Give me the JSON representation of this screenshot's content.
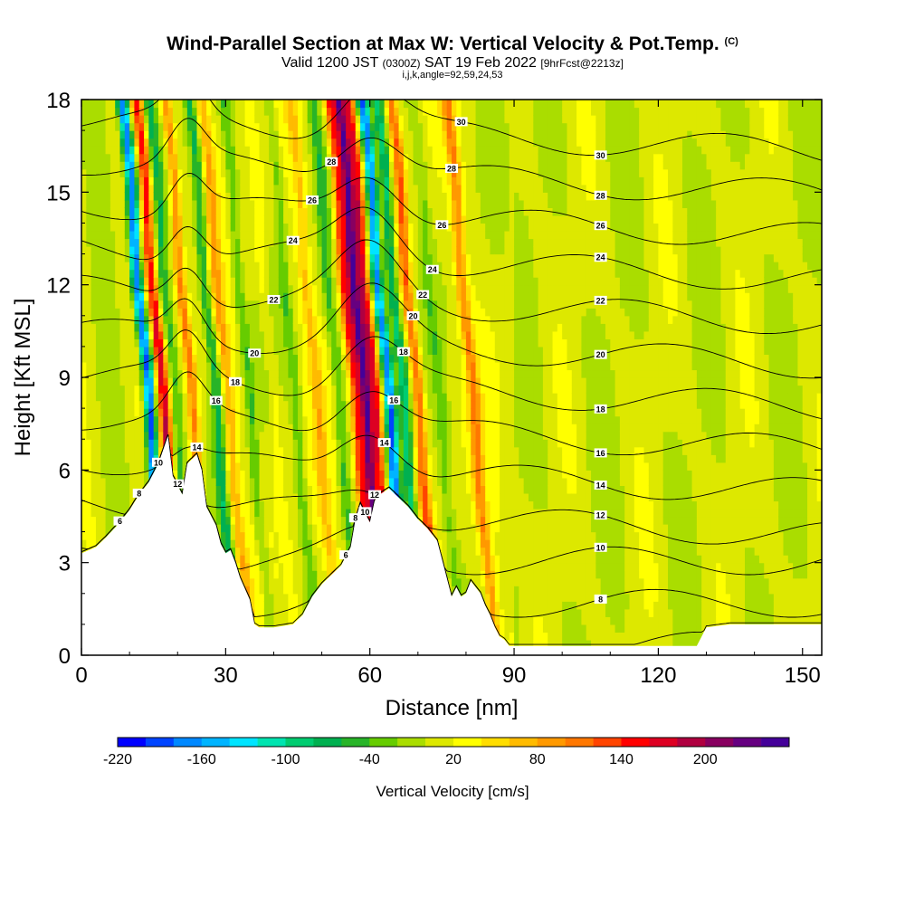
{
  "header": {
    "title": "Wind-Parallel Section at Max W: Vertical Velocity & Pot.Temp.",
    "title_mark": "(C)",
    "subtitle_a": "Valid 1200 JST",
    "subtitle_b": "(0300Z)",
    "subtitle_c": "SAT 19 Feb 2022",
    "subtitle_d": "[9hrFcst@2213z]",
    "subtitle_line3": "i,j,k,angle=92,59,24,53"
  },
  "chart_data": {
    "type": "heatmap",
    "title": "Wind-Parallel Section at Max W: Vertical Velocity & Pot.Temp.",
    "xlabel": "Distance [nm]",
    "ylabel": "Height [Kft MSL]",
    "xlim": [
      0,
      154
    ],
    "ylim": [
      0,
      18
    ],
    "x_ticks": [
      0,
      30,
      60,
      90,
      120,
      150
    ],
    "y_ticks": [
      0,
      3,
      6,
      9,
      12,
      15,
      18
    ],
    "colorbar": {
      "label": "Vertical Velocity [cm/s]",
      "min": -220,
      "max": 260,
      "step": 20,
      "tick_labels": [
        "-220",
        "-160",
        "-100",
        "-40",
        "20",
        "80",
        "140",
        "200"
      ],
      "tick_values": [
        -220,
        -160,
        -100,
        -40,
        20,
        80,
        140,
        200
      ],
      "colors": [
        "#0000ff",
        "#0044ff",
        "#0088ff",
        "#00b4ff",
        "#00e4ff",
        "#00e4b0",
        "#00cc70",
        "#00b050",
        "#28b428",
        "#66cc00",
        "#aadd00",
        "#dde800",
        "#ffff00",
        "#ffdd00",
        "#ffbb00",
        "#ff9900",
        "#ff7700",
        "#ff4400",
        "#ff0000",
        "#dd0022",
        "#b00040",
        "#880060",
        "#660080",
        "#440099"
      ]
    },
    "terrain_profile": [
      [
        0,
        3.3
      ],
      [
        3,
        3.5
      ],
      [
        5,
        3.8
      ],
      [
        8,
        4.3
      ],
      [
        10,
        4.7
      ],
      [
        12,
        5.2
      ],
      [
        14,
        5.6
      ],
      [
        16,
        6.2
      ],
      [
        18,
        7.1
      ],
      [
        19,
        5.8
      ],
      [
        20,
        5.5
      ],
      [
        21,
        5.2
      ],
      [
        22,
        6.2
      ],
      [
        24,
        6.5
      ],
      [
        25,
        6
      ],
      [
        26,
        4.8
      ],
      [
        28,
        4.2
      ],
      [
        29,
        3.6
      ],
      [
        30,
        3.3
      ],
      [
        31,
        3.4
      ],
      [
        32,
        3
      ],
      [
        33,
        2.5
      ],
      [
        35,
        1.8
      ],
      [
        36,
        1
      ],
      [
        37,
        0.9
      ],
      [
        40,
        0.9
      ],
      [
        44,
        1
      ],
      [
        46,
        1.3
      ],
      [
        48,
        1.9
      ],
      [
        50,
        2.3
      ],
      [
        54,
        2.9
      ],
      [
        56,
        3.5
      ],
      [
        57,
        4.4
      ],
      [
        58,
        4.9
      ],
      [
        59,
        4.6
      ],
      [
        60,
        4.3
      ],
      [
        61,
        5
      ],
      [
        62,
        5.2
      ],
      [
        64,
        5.4
      ],
      [
        66,
        5.1
      ],
      [
        68,
        4.8
      ],
      [
        70,
        4.4
      ],
      [
        72,
        4.1
      ],
      [
        74,
        3.7
      ],
      [
        75,
        3.1
      ],
      [
        76,
        2.5
      ],
      [
        77,
        1.9
      ],
      [
        78,
        2.2
      ],
      [
        79,
        1.9
      ],
      [
        80,
        2
      ],
      [
        81,
        2.4
      ],
      [
        82,
        2.2
      ],
      [
        83,
        2
      ],
      [
        84,
        1.6
      ],
      [
        85,
        1.3
      ],
      [
        86,
        0.9
      ],
      [
        87,
        0.6
      ],
      [
        88,
        0.5
      ],
      [
        89,
        0.3
      ],
      [
        95,
        0.3
      ],
      [
        100,
        0.3
      ],
      [
        110,
        0.3
      ],
      [
        120,
        0.3
      ],
      [
        125,
        0.3
      ],
      [
        128,
        0.3
      ],
      [
        129,
        0.6
      ],
      [
        130,
        0.9
      ],
      [
        135,
        1
      ],
      [
        145,
        1
      ],
      [
        150,
        1
      ],
      [
        154,
        1
      ]
    ],
    "velocity_bands": [
      {
        "x_base": 18.5,
        "w": -200
      },
      {
        "x_base": 21.5,
        "w": 150
      },
      {
        "x_base": 24,
        "w": -60
      },
      {
        "x_base": 27.5,
        "w": 100
      },
      {
        "x_base": 32.5,
        "w": -80
      },
      {
        "x_base": 35,
        "w": 60
      },
      {
        "x_base": 39.5,
        "w": -50
      },
      {
        "x_base": 44.5,
        "w": 30
      },
      {
        "x_base": 49,
        "w": -45
      },
      {
        "x_base": 53.5,
        "w": 45
      },
      {
        "x_base": 58,
        "w": -55
      },
      {
        "x_base": 61.5,
        "w": 140
      },
      {
        "x_base": 63.5,
        "w": 230
      },
      {
        "x_base": 65.5,
        "w": 150
      },
      {
        "x_base": 68.5,
        "w": -200
      },
      {
        "x_base": 71.5,
        "w": -110
      },
      {
        "x_base": 74.5,
        "w": 110
      },
      {
        "x_base": 79,
        "w": -30
      },
      {
        "x_base": 86,
        "w": 80
      }
    ],
    "contour_labels": [
      "6",
      "8",
      "10",
      "12",
      "14",
      "16",
      "18",
      "20",
      "22",
      "24",
      "26",
      "28",
      "30"
    ],
    "contour_levels": [
      6,
      8,
      10,
      12,
      14,
      16,
      18,
      20,
      22,
      24,
      26,
      28,
      30
    ],
    "grid": false
  }
}
